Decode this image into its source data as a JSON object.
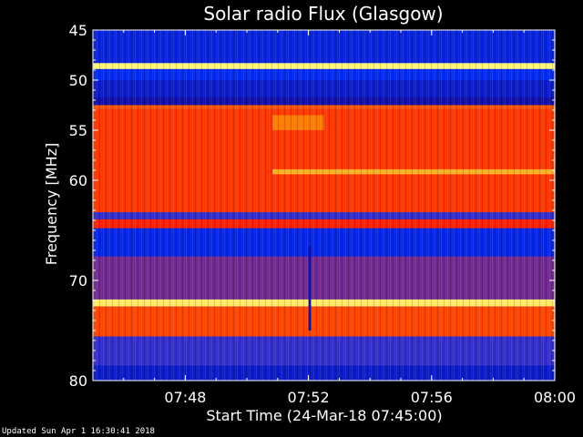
{
  "chart_data": {
    "type": "heatmap",
    "title": "Solar radio Flux (Glasgow)",
    "xlabel": "Start Time (24-Mar-18 07:45:00)",
    "ylabel": "Frequency [MHz]",
    "x_range": [
      "07:45:00",
      "08:00:00"
    ],
    "x_ticks": [
      "07:48",
      "07:52",
      "07:56",
      "08:00"
    ],
    "y_range": [
      45,
      80
    ],
    "y_ticks": [
      "45",
      "50",
      "55",
      "60",
      "70",
      "80"
    ],
    "colormap": [
      "#1a0080",
      "#0030ff",
      "#ff2000",
      "#ff9000",
      "#ffff80"
    ],
    "bands": [
      {
        "from": 45.0,
        "to": 48.3,
        "level": 0.18
      },
      {
        "from": 48.3,
        "to": 48.9,
        "level": 0.98
      },
      {
        "from": 48.9,
        "to": 50.0,
        "level": 0.22
      },
      {
        "from": 50.0,
        "to": 51.7,
        "level": 0.14
      },
      {
        "from": 51.7,
        "to": 52.5,
        "level": 0.08
      },
      {
        "from": 52.5,
        "to": 52.9,
        "level": 0.62
      },
      {
        "from": 52.9,
        "to": 63.2,
        "level": 0.55
      },
      {
        "from": 63.2,
        "to": 63.9,
        "level": 0.3
      },
      {
        "from": 63.9,
        "to": 64.8,
        "level": 0.5
      },
      {
        "from": 64.8,
        "to": 67.6,
        "level": 0.2
      },
      {
        "from": 67.6,
        "to": 71.9,
        "level": 0.36
      },
      {
        "from": 71.9,
        "to": 72.6,
        "level": 0.95
      },
      {
        "from": 72.6,
        "to": 75.6,
        "level": 0.58
      },
      {
        "from": 75.6,
        "to": 78.5,
        "level": 0.3
      },
      {
        "from": 78.5,
        "to": 80.0,
        "level": 0.14
      }
    ],
    "features": [
      {
        "t_start": "07:50:50",
        "t_end": "08:00:00",
        "f_from": 58.9,
        "f_to": 59.4,
        "level": 0.82
      },
      {
        "t_start": "07:50:50",
        "t_end": "07:52:30",
        "f_from": 53.5,
        "f_to": 55.0,
        "level": 0.7
      },
      {
        "t_start": "07:52:00",
        "t_end": "07:52:05",
        "f_from": 66.5,
        "f_to": 75.0,
        "level": 0.1
      }
    ],
    "footer": "Updated Sun Apr  1 16:30:41 2018"
  }
}
